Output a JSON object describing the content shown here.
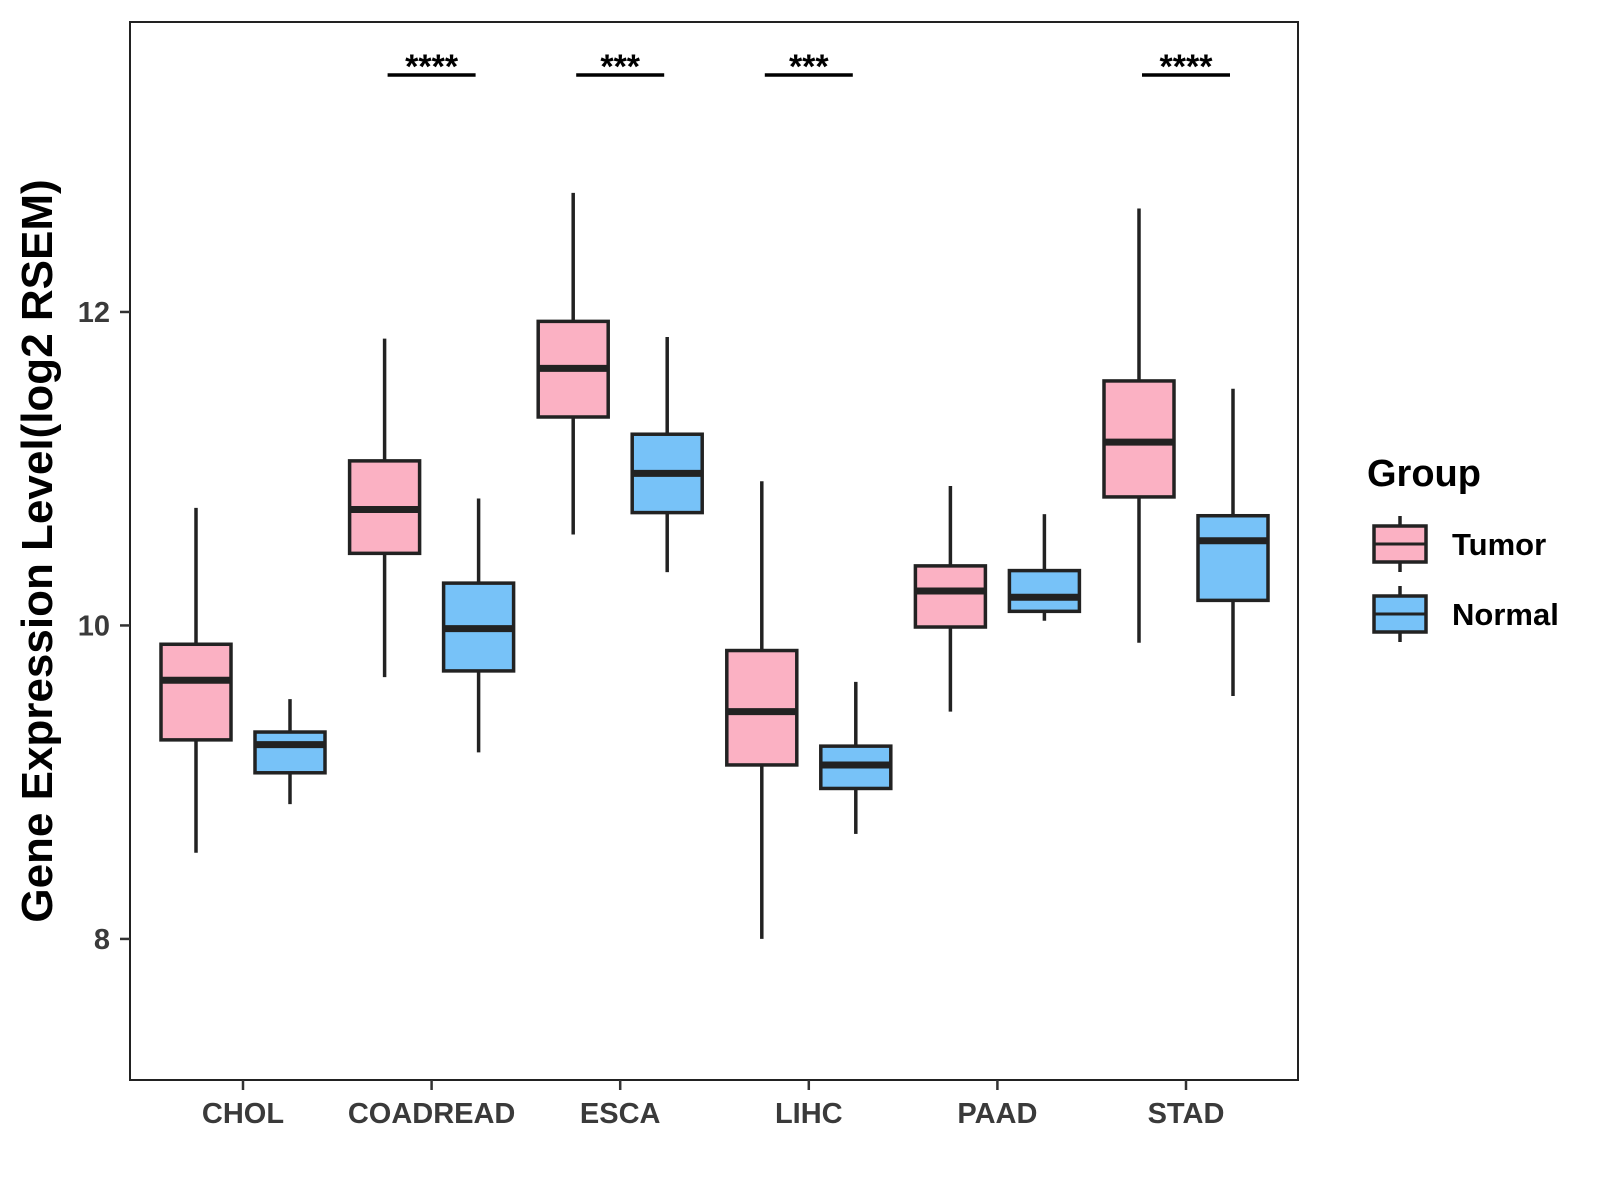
{
  "chart_data": {
    "type": "boxplot",
    "title": "",
    "xlabel": "",
    "ylabel": "Gene Expression Level(log2 RSEM)",
    "ylim": [
      7.1,
      13.85
    ],
    "yticks": [
      8,
      10,
      12
    ],
    "grid": false,
    "categories": [
      "CHOL",
      "COADREAD",
      "ESCA",
      "LIHC",
      "PAAD",
      "STAD"
    ],
    "legend": {
      "title": "Group",
      "position": "right",
      "entries": [
        {
          "name": "Tumor",
          "color": "#FBB1C3"
        },
        {
          "name": "Normal",
          "color": "#77C2F8"
        }
      ]
    },
    "series": [
      {
        "name": "Tumor",
        "color": "#FBB1C3",
        "boxes": [
          {
            "min": 8.55,
            "q1": 9.27,
            "median": 9.65,
            "q3": 9.88,
            "max": 10.75
          },
          {
            "min": 9.67,
            "q1": 10.46,
            "median": 10.74,
            "q3": 11.05,
            "max": 11.83
          },
          {
            "min": 10.58,
            "q1": 11.33,
            "median": 11.64,
            "q3": 11.94,
            "max": 12.76
          },
          {
            "min": 8.0,
            "q1": 9.11,
            "median": 9.45,
            "q3": 9.84,
            "max": 10.92
          },
          {
            "min": 9.45,
            "q1": 9.99,
            "median": 10.22,
            "q3": 10.38,
            "max": 10.89
          },
          {
            "min": 9.89,
            "q1": 10.82,
            "median": 11.17,
            "q3": 11.56,
            "max": 12.66
          }
        ]
      },
      {
        "name": "Normal",
        "color": "#77C2F8",
        "boxes": [
          {
            "min": 8.86,
            "q1": 9.06,
            "median": 9.24,
            "q3": 9.32,
            "max": 9.53
          },
          {
            "min": 9.19,
            "q1": 9.71,
            "median": 9.98,
            "q3": 10.27,
            "max": 10.81
          },
          {
            "min": 10.34,
            "q1": 10.72,
            "median": 10.97,
            "q3": 11.22,
            "max": 11.84
          },
          {
            "min": 8.67,
            "q1": 8.96,
            "median": 9.11,
            "q3": 9.23,
            "max": 9.64
          },
          {
            "min": 10.03,
            "q1": 10.09,
            "median": 10.18,
            "q3": 10.35,
            "max": 10.71
          },
          {
            "min": 9.55,
            "q1": 10.16,
            "median": 10.54,
            "q3": 10.7,
            "max": 11.51
          }
        ]
      }
    ],
    "significance": [
      {
        "category": "CHOL",
        "label": ""
      },
      {
        "category": "COADREAD",
        "label": "****"
      },
      {
        "category": "ESCA",
        "label": "***"
      },
      {
        "category": "LIHC",
        "label": "***"
      },
      {
        "category": "PAAD",
        "label": ""
      },
      {
        "category": "STAD",
        "label": "****"
      }
    ]
  }
}
